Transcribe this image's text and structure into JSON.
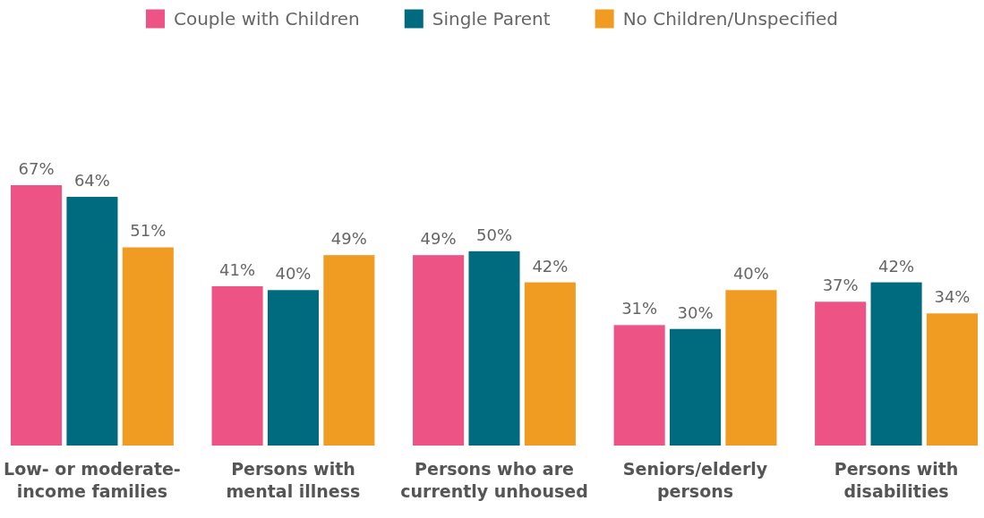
{
  "chart_data": {
    "type": "bar",
    "categories": [
      "Low- or moderate-\nincome families",
      "Persons with\nmental illness",
      "Persons who are\ncurrently unhoused",
      "Seniors/elderly\npersons",
      "Persons with\ndisabilities"
    ],
    "series": [
      {
        "name": "Couple with Children",
        "color": "#ee5386",
        "values": [
          67,
          41,
          49,
          31,
          37
        ],
        "value_labels": [
          "67%",
          "41%",
          "49%",
          "31%",
          "37%"
        ]
      },
      {
        "name": "Single Parent",
        "color": "#006b7f",
        "values": [
          64,
          40,
          50,
          30,
          42
        ],
        "value_labels": [
          "64%",
          "40%",
          "50%",
          "30%",
          "42%"
        ]
      },
      {
        "name": "No Children/Unspecified",
        "color": "#f09c22",
        "values": [
          51,
          49,
          42,
          40,
          34
        ],
        "value_labels": [
          "51%",
          "49%",
          "42%",
          "40%",
          "34%"
        ]
      }
    ],
    "legend": "top"
  }
}
